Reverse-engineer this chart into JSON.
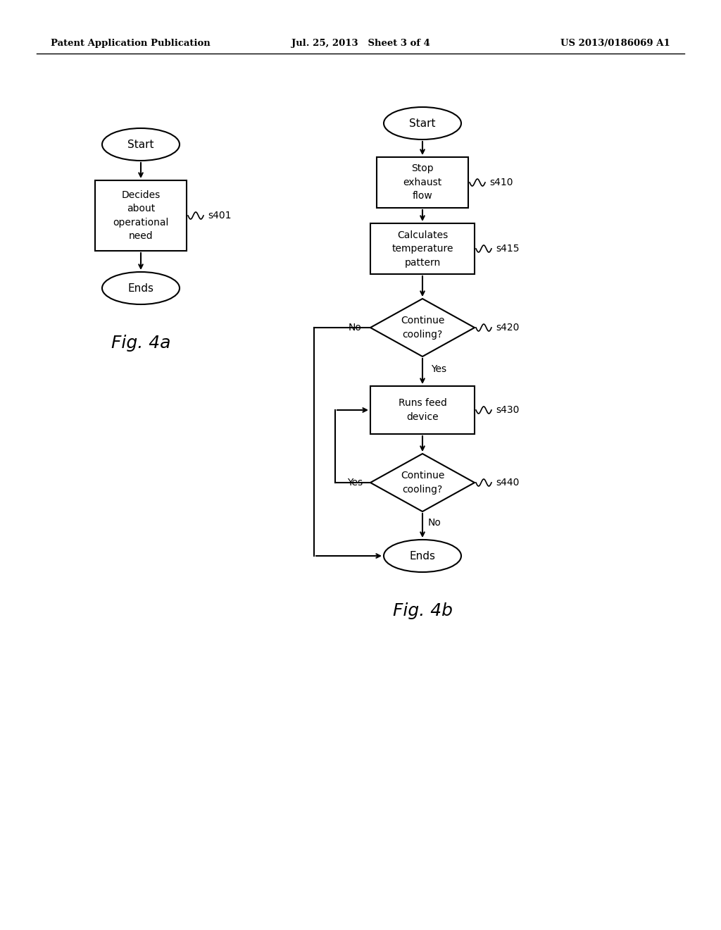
{
  "bg_color": "#ffffff",
  "header_left": "Patent Application Publication",
  "header_center": "Jul. 25, 2013   Sheet 3 of 4",
  "header_right": "US 2013/0186069 A1",
  "fig4a_label": "Fig. 4a",
  "fig4b_label": "Fig. 4b"
}
